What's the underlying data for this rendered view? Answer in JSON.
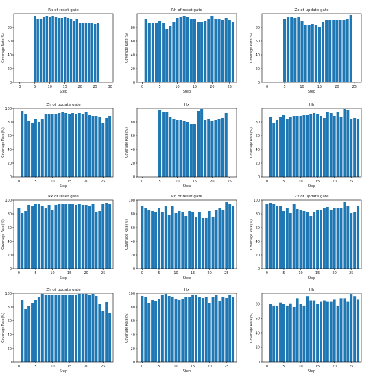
{
  "bar_color": "#1f77b4",
  "chart_data": [
    {
      "type": "bar",
      "title": "Rx of reset gate",
      "xlabel": "Step",
      "ylabel": "Coverage Rate(%)",
      "xlim": [
        -2,
        31
      ],
      "ylim": [
        0,
        100
      ],
      "xticks": [
        0,
        5,
        10,
        15,
        20,
        25,
        30
      ],
      "yticks": [
        0,
        20,
        40,
        60,
        80
      ],
      "x": [
        0,
        1,
        2,
        3,
        4,
        5,
        6,
        7,
        8,
        9,
        10,
        11,
        12,
        13,
        14,
        15,
        16,
        17,
        18,
        19,
        20,
        21,
        22,
        23,
        24,
        25,
        26
      ],
      "values": [
        0,
        0,
        0,
        0,
        0,
        96,
        92,
        93,
        95,
        96,
        95,
        96,
        95,
        94,
        94,
        95,
        94,
        93,
        89,
        93,
        86,
        86,
        86,
        86,
        86,
        85,
        86
      ]
    },
    {
      "type": "bar",
      "title": "Rh of reset gate",
      "xlabel": "Step",
      "ylabel": "Coverage Rate(%)",
      "xlim": [
        -1.5,
        27
      ],
      "ylim": [
        0,
        100
      ],
      "xticks": [
        0,
        5,
        10,
        15,
        20,
        25
      ],
      "yticks": [
        0,
        20,
        40,
        60,
        80
      ],
      "x": [
        0,
        1,
        2,
        3,
        4,
        5,
        6,
        7,
        8,
        9,
        10,
        11,
        12,
        13,
        14,
        15,
        16,
        17,
        18,
        19,
        20,
        21,
        22,
        23,
        24,
        25,
        26
      ],
      "values": [
        0,
        92,
        86,
        86,
        87,
        89,
        87,
        78,
        82,
        88,
        94,
        95,
        96,
        95,
        93,
        92,
        88,
        88,
        90,
        93,
        97,
        93,
        92,
        91,
        94,
        91,
        88
      ]
    },
    {
      "type": "bar",
      "title": "Zx of update gate",
      "xlabel": "Step",
      "ylabel": "Coverage Rate(%)",
      "xlim": [
        -1.5,
        27
      ],
      "ylim": [
        0,
        100
      ],
      "xticks": [
        0,
        5,
        10,
        15,
        20,
        25
      ],
      "yticks": [
        0,
        20,
        40,
        60,
        80
      ],
      "x": [
        0,
        1,
        2,
        3,
        4,
        5,
        6,
        7,
        8,
        9,
        10,
        11,
        12,
        13,
        14,
        15,
        16,
        17,
        18,
        19,
        20,
        21,
        22,
        23,
        24
      ],
      "values": [
        0,
        0,
        0,
        0,
        0,
        93,
        95,
        95,
        94,
        95,
        89,
        83,
        84,
        85,
        83,
        80,
        88,
        91,
        91,
        91,
        91,
        91,
        91,
        92,
        98
      ]
    },
    {
      "type": "bar",
      "title": "Zh of update gate",
      "xlabel": "Step",
      "ylabel": "Coverage Rate(%)",
      "xlim": [
        -1.5,
        28
      ],
      "ylim": [
        0,
        100
      ],
      "xticks": [
        0,
        5,
        10,
        15,
        20,
        25
      ],
      "yticks": [
        0,
        20,
        40,
        60,
        80,
        100
      ],
      "x": [
        0,
        1,
        2,
        3,
        4,
        5,
        6,
        7,
        8,
        9,
        10,
        11,
        12,
        13,
        14,
        15,
        16,
        17,
        18,
        19,
        20,
        21,
        22,
        23,
        24,
        25,
        26,
        27
      ],
      "values": [
        0,
        96,
        92,
        81,
        78,
        84,
        80,
        84,
        91,
        91,
        91,
        91,
        93,
        94,
        93,
        91,
        93,
        92,
        93,
        92,
        95,
        90,
        89,
        89,
        88,
        79,
        86,
        89
      ]
    },
    {
      "type": "bar",
      "title": "Hx",
      "xlabel": "Step",
      "ylabel": "Coverage Rate(%)",
      "xlim": [
        -1.5,
        27
      ],
      "ylim": [
        0,
        100
      ],
      "xticks": [
        0,
        5,
        10,
        15,
        20,
        25
      ],
      "yticks": [
        0,
        20,
        40,
        60,
        80
      ],
      "x": [
        0,
        1,
        2,
        3,
        4,
        5,
        6,
        7,
        8,
        9,
        10,
        11,
        12,
        13,
        14,
        15,
        16,
        17,
        18,
        19,
        20,
        21,
        22,
        23,
        24
      ],
      "values": [
        0,
        0,
        0,
        0,
        0,
        97,
        95,
        94,
        87,
        84,
        83,
        83,
        81,
        80,
        77,
        77,
        96,
        99,
        83,
        85,
        82,
        83,
        84,
        86,
        93
      ]
    },
    {
      "type": "bar",
      "title": "Hh",
      "xlabel": "Step",
      "ylabel": "Coverage Rate(%)",
      "xlim": [
        -1.5,
        28
      ],
      "ylim": [
        0,
        100
      ],
      "xticks": [
        0,
        5,
        10,
        15,
        20,
        25
      ],
      "yticks": [
        0,
        20,
        40,
        60,
        80
      ],
      "x": [
        0,
        1,
        2,
        3,
        4,
        5,
        6,
        7,
        8,
        9,
        10,
        11,
        12,
        13,
        14,
        15,
        16,
        17,
        18,
        19,
        20,
        21,
        22,
        23,
        24,
        25,
        26,
        27
      ],
      "values": [
        0,
        87,
        78,
        83,
        88,
        90,
        84,
        87,
        89,
        89,
        89,
        90,
        90,
        91,
        93,
        92,
        89,
        86,
        95,
        93,
        89,
        95,
        87,
        99,
        98,
        85,
        86,
        85
      ]
    },
    {
      "type": "bar",
      "title": "Rx of reset gate",
      "xlabel": "Step",
      "ylabel": "Coverage Rate(%)",
      "xlim": [
        -1.5,
        28
      ],
      "ylim": [
        0,
        100
      ],
      "xticks": [
        0,
        5,
        10,
        15,
        20,
        25
      ],
      "yticks": [
        0,
        20,
        40,
        60,
        80,
        100
      ],
      "x": [
        0,
        1,
        2,
        3,
        4,
        5,
        6,
        7,
        8,
        9,
        10,
        11,
        12,
        13,
        14,
        15,
        16,
        17,
        18,
        19,
        20,
        21,
        22,
        23,
        24,
        25,
        26,
        27
      ],
      "values": [
        89,
        81,
        84,
        93,
        91,
        94,
        94,
        92,
        89,
        93,
        85,
        93,
        94,
        94,
        94,
        94,
        94,
        93,
        94,
        93,
        93,
        91,
        95,
        83,
        84,
        94,
        96,
        94
      ]
    },
    {
      "type": "bar",
      "title": "Rh of reset gate",
      "xlabel": "Step",
      "ylabel": "Coverage Rate(%)",
      "xlim": [
        -1.5,
        28
      ],
      "ylim": [
        0,
        100
      ],
      "xticks": [
        0,
        5,
        10,
        15,
        20,
        25
      ],
      "yticks": [
        0,
        20,
        40,
        60,
        80,
        100
      ],
      "x": [
        0,
        1,
        2,
        3,
        4,
        5,
        6,
        7,
        8,
        9,
        10,
        11,
        12,
        13,
        14,
        15,
        16,
        17,
        18,
        19,
        20,
        21,
        22,
        23,
        24,
        25,
        26,
        27
      ],
      "values": [
        92,
        89,
        86,
        84,
        82,
        88,
        82,
        91,
        78,
        92,
        81,
        84,
        83,
        77,
        84,
        83,
        75,
        82,
        74,
        74,
        84,
        76,
        86,
        88,
        85,
        98,
        94,
        92
      ]
    },
    {
      "type": "bar",
      "title": "Zx of update gate",
      "xlabel": "Step",
      "ylabel": "Coverage Rate(%)",
      "xlim": [
        -1.5,
        28
      ],
      "ylim": [
        0,
        100
      ],
      "xticks": [
        0,
        5,
        10,
        15,
        20,
        25
      ],
      "yticks": [
        0,
        20,
        40,
        60,
        80,
        100
      ],
      "x": [
        0,
        1,
        2,
        3,
        4,
        5,
        6,
        7,
        8,
        9,
        10,
        11,
        12,
        13,
        14,
        15,
        16,
        17,
        18,
        19,
        20,
        21,
        22,
        23,
        24,
        25,
        26,
        27
      ],
      "values": [
        94,
        96,
        94,
        92,
        91,
        84,
        88,
        81,
        95,
        87,
        85,
        84,
        83,
        77,
        82,
        85,
        86,
        88,
        90,
        86,
        89,
        89,
        88,
        97,
        91,
        81,
        83,
        92
      ]
    },
    {
      "type": "bar",
      "title": "Zh of update gate",
      "xlabel": "Step",
      "ylabel": "Coverage Rate(%)",
      "xlim": [
        -1.5,
        28
      ],
      "ylim": [
        0,
        100
      ],
      "xticks": [
        0,
        5,
        10,
        15,
        20,
        25
      ],
      "yticks": [
        0,
        20,
        40,
        60,
        80,
        100
      ],
      "x": [
        0,
        1,
        2,
        3,
        4,
        5,
        6,
        7,
        8,
        9,
        10,
        11,
        12,
        13,
        14,
        15,
        16,
        17,
        18,
        19,
        20,
        21,
        22,
        23,
        24,
        25,
        26,
        27
      ],
      "values": [
        0,
        90,
        77,
        82,
        86,
        91,
        95,
        99,
        97,
        97,
        98,
        98,
        98,
        97,
        98,
        97,
        98,
        98,
        99,
        99,
        99,
        98,
        99,
        96,
        84,
        74,
        87,
        72
      ]
    },
    {
      "type": "bar",
      "title": "Hx",
      "xlabel": "Step",
      "ylabel": "Coverage Rate(%)",
      "xlim": [
        -1.5,
        28
      ],
      "ylim": [
        0,
        100
      ],
      "xticks": [
        0,
        5,
        10,
        15,
        20,
        25
      ],
      "yticks": [
        0,
        20,
        40,
        60,
        80,
        100
      ],
      "x": [
        0,
        1,
        2,
        3,
        4,
        5,
        6,
        7,
        8,
        9,
        10,
        11,
        12,
        13,
        14,
        15,
        16,
        17,
        18,
        19,
        20,
        21,
        22,
        23,
        24,
        25,
        26,
        27
      ],
      "values": [
        96,
        94,
        86,
        91,
        89,
        92,
        97,
        99,
        96,
        95,
        92,
        91,
        92,
        95,
        95,
        97,
        97,
        95,
        93,
        95,
        86,
        95,
        97,
        89,
        95,
        93,
        97,
        95
      ]
    },
    {
      "type": "bar",
      "title": "Hh",
      "xlabel": "Step",
      "ylabel": "Coverage Rate(%)",
      "xlim": [
        -1.5,
        28
      ],
      "ylim": [
        0,
        95
      ],
      "xticks": [
        0,
        5,
        10,
        15,
        20,
        25
      ],
      "yticks": [
        0,
        20,
        40,
        60,
        80
      ],
      "x": [
        0,
        1,
        2,
        3,
        4,
        5,
        6,
        7,
        8,
        9,
        10,
        11,
        12,
        13,
        14,
        15,
        16,
        17,
        18,
        19,
        20,
        21,
        22,
        23,
        24,
        25,
        26,
        27
      ],
      "values": [
        0,
        80,
        78,
        77,
        82,
        80,
        78,
        81,
        76,
        88,
        80,
        78,
        91,
        85,
        85,
        80,
        84,
        85,
        84,
        84,
        87,
        78,
        88,
        88,
        84,
        94,
        91,
        87
      ]
    }
  ]
}
